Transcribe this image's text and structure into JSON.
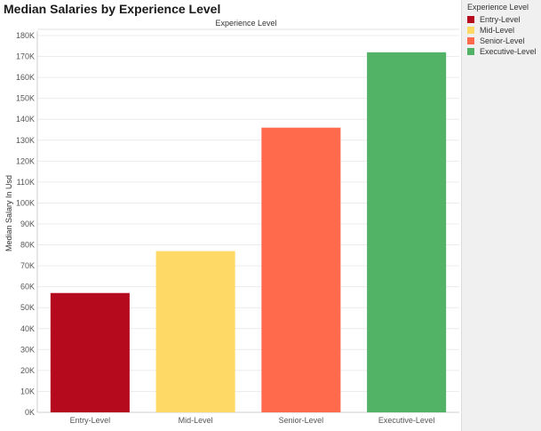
{
  "chart_data": {
    "type": "bar",
    "title": "Median Salaries by Experience Level",
    "header": "Experience Level",
    "ylabel": "Median Salary In Usd",
    "categories": [
      "Entry-Level",
      "Mid-Level",
      "Senior-Level",
      "Executive-Level"
    ],
    "values": [
      57000,
      77000,
      136000,
      172000
    ],
    "colors": [
      "#b5091e",
      "#ffd966",
      "#ff6a4d",
      "#52b266"
    ],
    "ylim": [
      0,
      180000
    ],
    "yticks": [
      0,
      10000,
      20000,
      30000,
      40000,
      50000,
      60000,
      70000,
      80000,
      90000,
      100000,
      110000,
      120000,
      130000,
      140000,
      150000,
      160000,
      170000,
      180000
    ],
    "ytick_labels": [
      "0K",
      "10K",
      "20K",
      "30K",
      "40K",
      "50K",
      "60K",
      "70K",
      "80K",
      "90K",
      "100K",
      "110K",
      "120K",
      "130K",
      "140K",
      "150K",
      "160K",
      "170K",
      "180K"
    ],
    "grid": true,
    "legend_position": "right"
  },
  "legend": {
    "title": "Experience Level",
    "items": [
      {
        "label": "Entry-Level",
        "color": "#b5091e"
      },
      {
        "label": "Mid-Level",
        "color": "#ffd966"
      },
      {
        "label": "Senior-Level",
        "color": "#ff6a4d"
      },
      {
        "label": "Executive-Level",
        "color": "#52b266"
      }
    ]
  }
}
